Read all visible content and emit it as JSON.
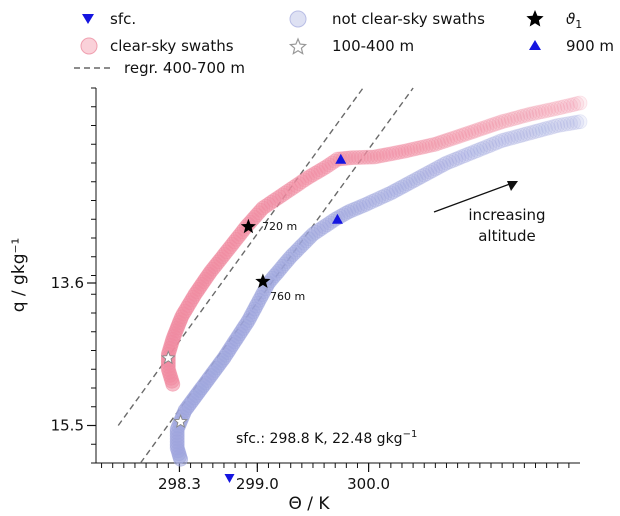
{
  "chart_data": {
    "type": "scatter",
    "xlabel": "Θ / K",
    "ylabel": "q / gkg⁻¹",
    "xlim": [
      297.55,
      301.9
    ],
    "ylim": [
      16.0,
      11.0
    ],
    "y_inverted": true,
    "x_ticks": [
      {
        "value": 298.3,
        "label": "298.3"
      },
      {
        "value": 299.0,
        "label": "299.0"
      },
      {
        "value": 300.0,
        "label": "300.0"
      }
    ],
    "y_ticks": [
      {
        "value": 13.6,
        "label": "13.6"
      },
      {
        "value": 15.5,
        "label": "15.5"
      }
    ],
    "legend": [
      {
        "key": "sfc",
        "label": "sfc.",
        "marker": "triangle-down",
        "color": "#1515e0"
      },
      {
        "key": "clear",
        "label": "clear-sky swaths",
        "marker": "circle",
        "color": "#f4a6b4"
      },
      {
        "key": "regr",
        "label": "regr. 400-700 m",
        "marker": "dashed-line",
        "color": "#666666"
      },
      {
        "key": "notclear",
        "label": "not clear-sky swaths",
        "marker": "circle",
        "color": "#b8bde4"
      },
      {
        "key": "range",
        "label": "100-400 m",
        "marker": "star-open",
        "color": "#999999"
      },
      {
        "key": "theta1",
        "label": "ϑ",
        "sub": "1",
        "marker": "star-filled",
        "color": "#000000"
      },
      {
        "key": "m900",
        "label": "900 m",
        "marker": "triangle-up",
        "color": "#1515e0"
      }
    ],
    "series": [
      {
        "name": "clear-sky swaths",
        "color": "#f08aa0",
        "x": [
          298.24,
          298.2,
          298.2,
          298.24,
          298.32,
          298.44,
          298.58,
          298.74,
          298.9,
          299.05,
          299.25,
          299.45,
          299.62,
          299.72,
          299.85,
          300.05,
          300.3,
          300.6,
          300.9,
          301.2,
          301.45,
          301.7,
          301.9
        ],
        "y": [
          14.95,
          14.75,
          14.55,
          14.35,
          14.05,
          13.75,
          13.45,
          13.15,
          12.85,
          12.6,
          12.4,
          12.2,
          12.05,
          11.95,
          11.93,
          11.92,
          11.85,
          11.75,
          11.6,
          11.45,
          11.35,
          11.27,
          11.2
        ]
      },
      {
        "name": "not clear-sky swaths",
        "color": "#9ea5dd",
        "x": [
          298.31,
          298.28,
          298.28,
          298.35,
          298.5,
          298.7,
          298.92,
          299.1,
          299.3,
          299.5,
          299.7,
          299.82,
          299.98,
          300.2,
          300.45,
          300.7,
          300.95,
          301.2,
          301.45,
          301.7,
          301.9
        ],
        "y": [
          15.95,
          15.8,
          15.55,
          15.3,
          15.0,
          14.6,
          14.1,
          13.6,
          13.25,
          12.95,
          12.75,
          12.65,
          12.55,
          12.4,
          12.2,
          12.0,
          11.85,
          11.7,
          11.6,
          11.5,
          11.45
        ]
      }
    ],
    "regression_lines": [
      {
        "x": [
          297.75,
          299.95
        ],
        "y": [
          15.5,
          11.0
        ]
      },
      {
        "x": [
          297.95,
          300.4
        ],
        "y": [
          16.0,
          11.0
        ]
      }
    ],
    "markers": [
      {
        "type": "star-open",
        "series": "clear-sky swaths",
        "x": 298.2,
        "y": 14.6
      },
      {
        "type": "star-open",
        "series": "not clear-sky swaths",
        "x": 298.31,
        "y": 15.45
      },
      {
        "type": "star-filled",
        "series": "clear-sky swaths",
        "x": 298.92,
        "y": 12.85,
        "label": "720 m"
      },
      {
        "type": "star-filled",
        "series": "not clear-sky swaths",
        "x": 299.05,
        "y": 13.58,
        "label": "760 m"
      },
      {
        "type": "triangle-up",
        "series": "clear-sky swaths",
        "x": 299.75,
        "y": 11.95
      },
      {
        "type": "triangle-up",
        "series": "not clear-sky swaths",
        "x": 299.72,
        "y": 12.75
      },
      {
        "type": "triangle-down",
        "series": "sfc",
        "x": 298.75,
        "y": 16.2
      }
    ],
    "sfc_annotation": {
      "text": "sfc.: 298.8 K, 22.48 gkg",
      "sup": "−1"
    },
    "arrow_annotation": {
      "line1": "increasing",
      "line2": "altitude"
    }
  }
}
